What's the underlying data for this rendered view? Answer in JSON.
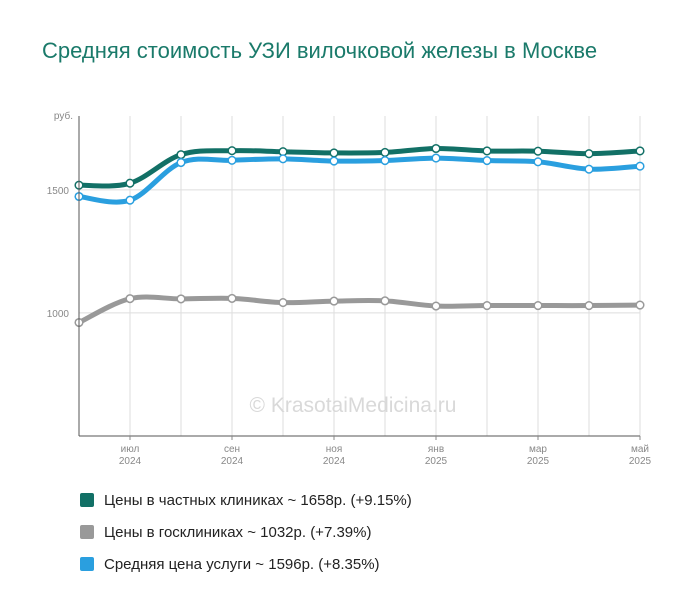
{
  "chart_data": {
    "type": "line",
    "title": "Средняя стоимость УЗИ вилочковой железы в Москве",
    "ylabel": "руб.",
    "watermark": "© KrasotaiMedicina.ru",
    "ylim": [
      500,
      1800
    ],
    "y_ticks": [
      {
        "value": 1500,
        "label": "1500"
      },
      {
        "value": 1000,
        "label": "1000"
      }
    ],
    "x": [
      "2024-06",
      "2024-07",
      "2024-08",
      "2024-09",
      "2024-10",
      "2024-11",
      "2024-12",
      "2025-01",
      "2025-02",
      "2025-03",
      "2025-04",
      "2025-05"
    ],
    "x_ticks": [
      {
        "index": 1,
        "month": "июл",
        "year": "2024"
      },
      {
        "index": 3,
        "month": "сен",
        "year": "2024"
      },
      {
        "index": 5,
        "month": "ноя",
        "year": "2024"
      },
      {
        "index": 7,
        "month": "янв",
        "year": "2025"
      },
      {
        "index": 9,
        "month": "мар",
        "year": "2025"
      },
      {
        "index": 11,
        "month": "май",
        "year": "2025"
      }
    ],
    "grid": true,
    "legend_position": "bottom",
    "series": [
      {
        "name": "Цены в частных клиниках",
        "legend": "Цены в частных клиниках ~ 1658р. (+9.15%)",
        "color": "#127066",
        "values": [
          1519,
          1527,
          1643,
          1659,
          1655,
          1650,
          1652,
          1668,
          1658,
          1657,
          1647,
          1658
        ]
      },
      {
        "name": "Цены в госклиниках",
        "legend": "Цены в госклиниках ~ 1032р. (+7.39%)",
        "color": "#999999",
        "values": [
          961,
          1058,
          1057,
          1059,
          1042,
          1048,
          1049,
          1028,
          1030,
          1030,
          1030,
          1032
        ]
      },
      {
        "name": "Средняя цена услуги",
        "legend": "Средняя цена услуги ~ 1596р. (+8.35%)",
        "color": "#2a9fdf",
        "values": [
          1473,
          1458,
          1611,
          1620,
          1626,
          1617,
          1619,
          1629,
          1619,
          1614,
          1584,
          1596
        ]
      }
    ]
  }
}
